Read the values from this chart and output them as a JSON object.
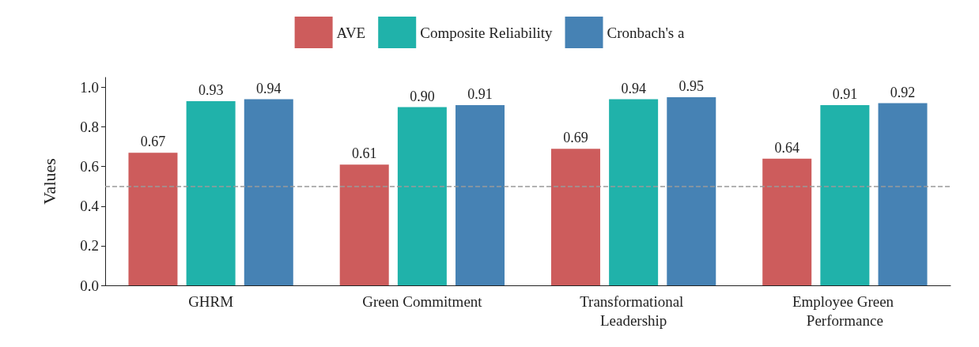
{
  "chart_data": {
    "type": "bar",
    "ylabel": "Values",
    "categories": [
      "GHRM",
      "Green Commitment",
      "Transformational Leadership",
      "Employee Green Performance"
    ],
    "series": [
      {
        "name": "AVE",
        "color": "#cd5c5c",
        "values": [
          0.67,
          0.61,
          0.69,
          0.64
        ]
      },
      {
        "name": "Composite Reliability",
        "color": "#20b2aa",
        "values": [
          0.93,
          0.9,
          0.94,
          0.91
        ]
      },
      {
        "name": "Cronbach's a",
        "color": "#4682b4",
        "values": [
          0.94,
          0.91,
          0.95,
          0.92
        ]
      }
    ],
    "value_labels": [
      [
        "0.67",
        "0.61",
        "0.69",
        "0.64"
      ],
      [
        "0.93",
        "0.90",
        "0.94",
        "0.91"
      ],
      [
        "0.94",
        "0.91",
        "0.95",
        "0.92"
      ]
    ],
    "ylim": [
      0,
      1.05
    ],
    "yticks": [
      {
        "value": 0,
        "label": "0.0"
      },
      {
        "value": 0.2,
        "label": "0.2"
      },
      {
        "value": 0.4,
        "label": "0.4"
      },
      {
        "value": 0.6,
        "label": "0.6"
      },
      {
        "value": 0.8,
        "label": "0.8"
      },
      {
        "value": 1,
        "label": "1.0"
      }
    ],
    "ref_lines": [
      {
        "axis": "y",
        "value": 0.5,
        "color": "#999999",
        "line_style": "dashed"
      }
    ],
    "grid": false,
    "legend": "top"
  }
}
